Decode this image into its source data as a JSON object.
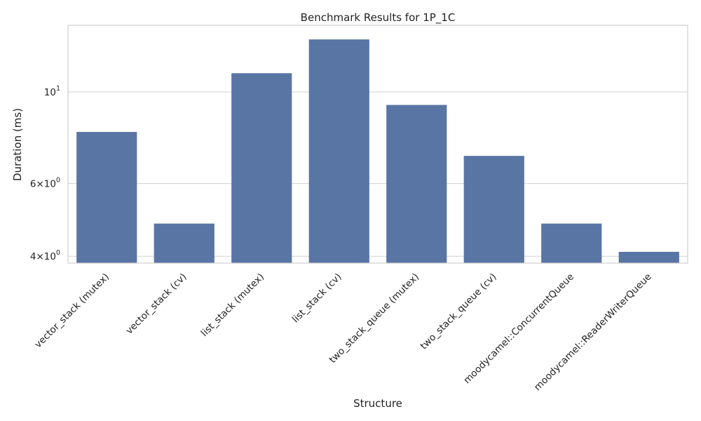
{
  "chart_data": {
    "type": "bar",
    "title": "Benchmark Results for 1P_1C",
    "xlabel": "Structure",
    "ylabel": "Duration (ms)",
    "yscale": "log",
    "ylim": [
      3.85,
      14.5
    ],
    "categories": [
      "vector_stack (mutex)",
      "vector_stack (cv)",
      "list_stack (mutex)",
      "list_stack (cv)",
      "two_stack_queue (mutex)",
      "two_stack_queue (cv)",
      "moodycamel::ConcurrentQueue",
      "moodycamel::ReaderWriterQueue"
    ],
    "values": [
      8.0,
      4.8,
      11.1,
      13.4,
      9.3,
      7.0,
      4.8,
      4.1
    ],
    "yticks": [
      {
        "value": 4,
        "base": "4×10",
        "exp": "0"
      },
      {
        "value": 6,
        "base": "6×10",
        "exp": "0"
      },
      {
        "value": 10,
        "base": "10",
        "exp": "1"
      }
    ],
    "grid": true,
    "bar_color": "#5975a4"
  }
}
